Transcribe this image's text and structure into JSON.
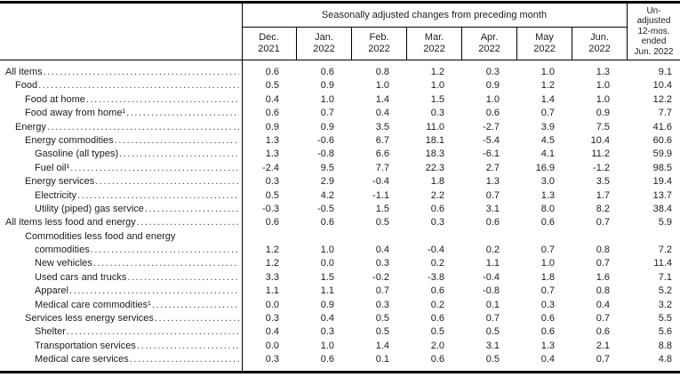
{
  "table": {
    "stub_header": "",
    "sa_title": "Seasonally adjusted changes from preceding month",
    "months": [
      {
        "month": "Dec.",
        "year": "2021"
      },
      {
        "month": "Jan.",
        "year": "2022"
      },
      {
        "month": "Feb.",
        "year": "2022"
      },
      {
        "month": "Mar.",
        "year": "2022"
      },
      {
        "month": "Apr.",
        "year": "2022"
      },
      {
        "month": "May",
        "year": "2022"
      },
      {
        "month": "Jun.",
        "year": "2022"
      }
    ],
    "unadjusted_lines": [
      "Un-",
      "adjusted",
      "12-mos.",
      "ended",
      "Jun. 2022"
    ],
    "rows": [
      {
        "label": "All items",
        "indent": 0,
        "values": [
          "0.6",
          "0.6",
          "0.8",
          "1.2",
          "0.3",
          "1.0",
          "1.3",
          "9.1"
        ]
      },
      {
        "label": "Food",
        "indent": 1,
        "values": [
          "0.5",
          "0.9",
          "1.0",
          "1.0",
          "0.9",
          "1.2",
          "1.0",
          "10.4"
        ]
      },
      {
        "label": "Food at home",
        "indent": 2,
        "values": [
          "0.4",
          "1.0",
          "1.4",
          "1.5",
          "1.0",
          "1.4",
          "1.0",
          "12.2"
        ]
      },
      {
        "label": "Food away from home¹",
        "indent": 2,
        "values": [
          "0.6",
          "0.7",
          "0.4",
          "0.3",
          "0.6",
          "0.7",
          "0.9",
          "7.7"
        ]
      },
      {
        "label": "Energy",
        "indent": 1,
        "values": [
          "0.9",
          "0.9",
          "3.5",
          "11.0",
          "-2.7",
          "3.9",
          "7.5",
          "41.6"
        ]
      },
      {
        "label": "Energy commodities",
        "indent": 2,
        "values": [
          "1.3",
          "-0.6",
          "6.7",
          "18.1",
          "-5.4",
          "4.5",
          "10.4",
          "60.6"
        ]
      },
      {
        "label": "Gasoline (all types)",
        "indent": 3,
        "values": [
          "1.3",
          "-0.8",
          "6.6",
          "18.3",
          "-6.1",
          "4.1",
          "11.2",
          "59.9"
        ]
      },
      {
        "label": "Fuel oil¹",
        "indent": 3,
        "values": [
          "-2.4",
          "9.5",
          "7.7",
          "22.3",
          "2.7",
          "16.9",
          "-1.2",
          "98.5"
        ]
      },
      {
        "label": "Energy services",
        "indent": 2,
        "values": [
          "0.3",
          "2.9",
          "-0.4",
          "1.8",
          "1.3",
          "3.0",
          "3.5",
          "19.4"
        ]
      },
      {
        "label": "Electricity",
        "indent": 3,
        "values": [
          "0.5",
          "4.2",
          "-1.1",
          "2.2",
          "0.7",
          "1.3",
          "1.7",
          "13.7"
        ]
      },
      {
        "label": "Utility (piped) gas service",
        "indent": 3,
        "values": [
          "-0.3",
          "-0.5",
          "1.5",
          "0.6",
          "3.1",
          "8.0",
          "8.2",
          "38.4"
        ]
      },
      {
        "label": "All items less food and energy",
        "indent": 0,
        "values": [
          "0.6",
          "0.6",
          "0.5",
          "0.3",
          "0.6",
          "0.6",
          "0.7",
          "5.9"
        ]
      },
      {
        "label": "Commodities less food and energy",
        "indent": 2,
        "leader": false,
        "values": null
      },
      {
        "label": "commodities",
        "indent": "cont",
        "values": [
          "1.2",
          "1.0",
          "0.4",
          "-0.4",
          "0.2",
          "0.7",
          "0.8",
          "7.2"
        ]
      },
      {
        "label": "New vehicles",
        "indent": 3,
        "values": [
          "1.2",
          "0.0",
          "0.3",
          "0.2",
          "1.1",
          "1.0",
          "0.7",
          "11.4"
        ]
      },
      {
        "label": "Used cars and trucks",
        "indent": 3,
        "values": [
          "3.3",
          "1.5",
          "-0.2",
          "-3.8",
          "-0.4",
          "1.8",
          "1.6",
          "7.1"
        ]
      },
      {
        "label": "Apparel",
        "indent": 3,
        "values": [
          "1.1",
          "1.1",
          "0.7",
          "0.6",
          "-0.8",
          "0.7",
          "0.8",
          "5.2"
        ]
      },
      {
        "label": "Medical care commodities¹",
        "indent": 3,
        "values": [
          "0.0",
          "0.9",
          "0.3",
          "0.2",
          "0.1",
          "0.3",
          "0.4",
          "3.2"
        ]
      },
      {
        "label": "Services less energy services",
        "indent": 2,
        "values": [
          "0.3",
          "0.4",
          "0.5",
          "0.6",
          "0.7",
          "0.6",
          "0.7",
          "5.5"
        ]
      },
      {
        "label": "Shelter",
        "indent": 3,
        "values": [
          "0.4",
          "0.3",
          "0.5",
          "0.5",
          "0.5",
          "0.6",
          "0.6",
          "5.6"
        ]
      },
      {
        "label": "Transportation services",
        "indent": 3,
        "values": [
          "0.0",
          "1.0",
          "1.4",
          "2.0",
          "3.1",
          "1.3",
          "2.1",
          "8.8"
        ]
      },
      {
        "label": "Medical care services",
        "indent": 3,
        "values": [
          "0.3",
          "0.6",
          "0.1",
          "0.6",
          "0.5",
          "0.4",
          "0.7",
          "4.8"
        ]
      }
    ]
  },
  "colors": {
    "rule": "#000000",
    "text": "#1c1c1c",
    "background": "#ffffff"
  }
}
